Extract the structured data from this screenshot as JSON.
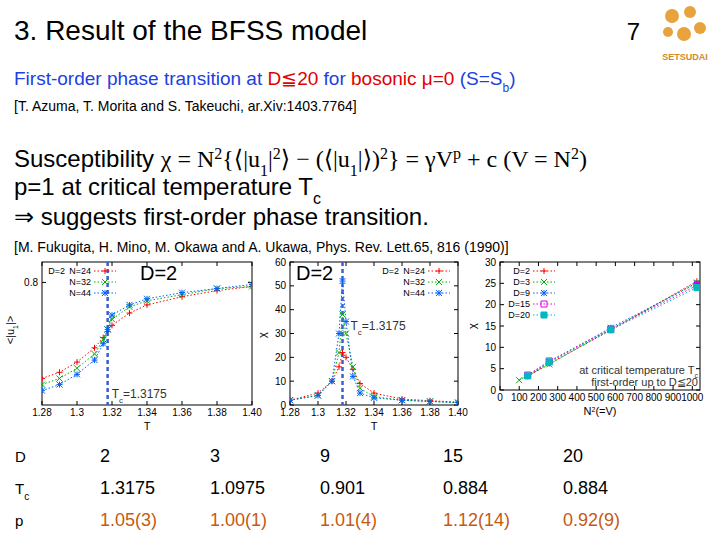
{
  "header": {
    "title": "3. Result of the BFSS model",
    "page": "7",
    "logo": "SETSUDAI"
  },
  "body": {
    "headline": [
      {
        "t": "First-order phase transition at ",
        "color": "#2040e0"
      },
      {
        "t": "D≦20",
        "color": "#e00000"
      },
      {
        "t": " for ",
        "color": "#2040e0"
      },
      {
        "t": "bosonic μ=0",
        "color": "#e00000"
      },
      {
        "t": " (S=S",
        "color": "#2040e0"
      },
      {
        "t": "b",
        "sub": true,
        "color": "#2040e0"
      },
      {
        "t": ")",
        "color": "#2040e0"
      }
    ],
    "reference_1": "[T. Azuma, T. Morita and S. Takeuchi, ar.Xiv:1403.7764]",
    "equation": [
      {
        "t": "Susceptibility "
      },
      {
        "t": "χ = N",
        "math": true
      },
      {
        "t": "2",
        "sup": true,
        "math": true
      },
      {
        "t": "{⟨|u",
        "math": true
      },
      {
        "t": "1",
        "sub": true,
        "math": true
      },
      {
        "t": "|",
        "math": true
      },
      {
        "t": "2",
        "sup": true,
        "math": true
      },
      {
        "t": "⟩ − (⟨|u",
        "math": true
      },
      {
        "t": "1",
        "sub": true,
        "math": true
      },
      {
        "t": "|⟩)",
        "math": true
      },
      {
        "t": "2",
        "sup": true,
        "math": true
      },
      {
        "t": "} = γV",
        "math": true
      },
      {
        "t": "p",
        "sup": true,
        "math": true
      },
      {
        "t": " + c (V = N",
        "math": true
      },
      {
        "t": "2",
        "sup": true,
        "math": true
      },
      {
        "t": ")",
        "math": true
      }
    ],
    "line_2": [
      {
        "t": "p=1 at critical temperature T"
      },
      {
        "t": "c",
        "sub": true
      }
    ],
    "line_3": [
      {
        "t": "⇒ suggests first-order phase transition."
      }
    ],
    "reference_2": "[M. Fukugita, H. Mino, M. Okawa and A. Ukawa, Phys. Rev. Lett.65, 816 (1990)]"
  },
  "chart_data": [
    {
      "type": "line",
      "title": "D=2",
      "x_label": "T",
      "y_label": [
        {
          "t": "<|u"
        },
        {
          "t": "1",
          "sub": true
        },
        {
          "t": "|>"
        }
      ],
      "xlim": [
        1.28,
        1.4
      ],
      "xticks": [
        1.28,
        1.3,
        1.32,
        1.34,
        1.36,
        1.38,
        {
          "value": 1.4,
          "label": "1.40"
        }
      ],
      "ylim": [
        0.2,
        0.9
      ],
      "yticks": [
        0.8
      ],
      "grid": false,
      "legend": "upper left",
      "legend_title": "D=2",
      "annotations": [
        {
          "x": 1.3175,
          "label": [
            {
              "t": "T"
            },
            {
              "t": "c",
              "sub": true
            },
            {
              "t": "=1.3175"
            }
          ]
        }
      ],
      "series": [
        {
          "name": "N=24",
          "color": "#ff0000",
          "marker": "plus",
          "line_style": "dotted",
          "x": [
            1.28,
            1.29,
            1.3,
            1.31,
            1.315,
            1.3175,
            1.32,
            1.33,
            1.34,
            1.36,
            1.38,
            1.4
          ],
          "values": [
            0.33,
            0.36,
            0.41,
            0.48,
            0.53,
            0.56,
            0.59,
            0.65,
            0.69,
            0.73,
            0.76,
            0.78
          ]
        },
        {
          "name": "N=32",
          "color": "#00b000",
          "marker": "cross",
          "line_style": "dotted",
          "x": [
            1.28,
            1.29,
            1.3,
            1.31,
            1.315,
            1.3175,
            1.32,
            1.33,
            1.34,
            1.36,
            1.38,
            1.4
          ],
          "values": [
            0.3,
            0.33,
            0.38,
            0.45,
            0.52,
            0.57,
            0.62,
            0.68,
            0.71,
            0.74,
            0.77,
            0.78
          ]
        },
        {
          "name": "N=44",
          "color": "#0060ff",
          "marker": "star",
          "line_style": "dotted",
          "x": [
            1.28,
            1.29,
            1.3,
            1.31,
            1.315,
            1.3175,
            1.32,
            1.33,
            1.34,
            1.36,
            1.38,
            1.4
          ],
          "values": [
            0.27,
            0.3,
            0.35,
            0.42,
            0.5,
            0.57,
            0.64,
            0.69,
            0.72,
            0.75,
            0.77,
            0.79
          ]
        }
      ]
    },
    {
      "type": "line",
      "title": "D=2",
      "x_label": "T",
      "y_label": "χ",
      "xlim": [
        1.28,
        1.4
      ],
      "xticks": [
        1.28,
        1.3,
        1.32,
        1.34,
        1.36,
        1.38,
        {
          "value": 1.4,
          "label": "1.40"
        }
      ],
      "ylim": [
        0,
        60
      ],
      "yticks": [
        0,
        10,
        20,
        30,
        40,
        50,
        60
      ],
      "grid": false,
      "legend": "upper right",
      "legend_title": "D=2",
      "annotations": [
        {
          "x": 1.3175,
          "label": [
            {
              "t": "T"
            },
            {
              "t": "c",
              "sub": true
            },
            {
              "t": "=1.3175"
            }
          ]
        }
      ],
      "series": [
        {
          "name": "N=24",
          "color": "#ff0000",
          "marker": "plus",
          "line_style": "dotted",
          "x": [
            1.28,
            1.3,
            1.31,
            1.315,
            1.3175,
            1.32,
            1.325,
            1.33,
            1.34,
            1.36,
            1.38,
            1.4
          ],
          "values": [
            2,
            5,
            10,
            16,
            22,
            20,
            15,
            9,
            5,
            2.5,
            1.8,
            1.2
          ]
        },
        {
          "name": "N=32",
          "color": "#00b000",
          "marker": "cross",
          "line_style": "dotted",
          "x": [
            1.28,
            1.3,
            1.31,
            1.315,
            1.3175,
            1.32,
            1.325,
            1.33,
            1.34,
            1.36,
            1.38,
            1.4
          ],
          "values": [
            2,
            4,
            10,
            22,
            38,
            30,
            16,
            7,
            3.5,
            2,
            1.5,
            1
          ]
        },
        {
          "name": "N=44",
          "color": "#0060ff",
          "marker": "star",
          "line_style": "dotted",
          "x": [
            1.28,
            1.3,
            1.31,
            1.315,
            1.3175,
            1.32,
            1.325,
            1.33,
            1.34,
            1.36,
            1.38,
            1.4
          ],
          "values": [
            2,
            4,
            10,
            30,
            52,
            35,
            12,
            5,
            3,
            2,
            1.5,
            1
          ]
        }
      ]
    },
    {
      "type": "line",
      "x_label": [
        {
          "t": "N"
        },
        {
          "t": "2",
          "sup": true
        },
        {
          "t": "(=V)"
        }
      ],
      "y_label": "χ",
      "xlim": [
        0,
        1040
      ],
      "xticks": [
        0,
        100,
        200,
        300,
        400,
        500,
        600,
        700,
        800,
        900,
        1000
      ],
      "ylim": [
        0,
        30
      ],
      "yticks": [
        0,
        5,
        10,
        15,
        20,
        25,
        30
      ],
      "grid": false,
      "legend": "upper left",
      "notes": [
        [
          {
            "t": "at critical temperature T"
          },
          {
            "t": "c",
            "sub": true
          }
        ],
        [
          {
            "t": "first-order up to D≦20"
          }
        ]
      ],
      "series": [
        {
          "name": "D=2",
          "color": "#ff0000",
          "marker": "plus",
          "line_style": "dotted",
          "x": [
            144,
            256,
            576,
            1024
          ],
          "values": [
            3.2,
            6.2,
            14.0,
            25.5
          ]
        },
        {
          "name": "D=3",
          "color": "#00b000",
          "marker": "cross",
          "line_style": "dotted",
          "x": [
            100,
            256,
            576,
            1024
          ],
          "values": [
            2.3,
            6.0,
            14.2,
            25.2
          ]
        },
        {
          "name": "D=9",
          "color": "#0060ff",
          "marker": "star",
          "line_style": "dotted",
          "x": [
            144,
            256,
            576,
            1024
          ],
          "values": [
            3.4,
            6.5,
            14.6,
            25.0
          ]
        },
        {
          "name": "D=15",
          "color": "#e000e0",
          "marker": "square",
          "line_style": "dotted",
          "x": [
            144,
            256,
            576,
            1024
          ],
          "values": [
            3.5,
            6.8,
            14.3,
            24.5
          ]
        },
        {
          "name": "D=20",
          "color": "#00b8c0",
          "marker": "filled-square",
          "line_style": "dotted",
          "x": [
            144,
            256,
            576,
            1024
          ],
          "values": [
            3.3,
            6.6,
            14.1,
            24.0
          ]
        }
      ]
    }
  ],
  "table": {
    "rows": [
      {
        "cells": [
          "D",
          "2",
          "3",
          "9",
          "15",
          "20"
        ]
      },
      {
        "cells": [
          [
            {
              "t": "T"
            },
            {
              "t": "c",
              "sub": true
            }
          ],
          "1.3175",
          "1.0975",
          "0.901",
          "0.884",
          "0.884"
        ]
      },
      {
        "cells": [
          "p",
          "1.05(3)",
          "1.00(1)",
          "1.01(4)",
          "1.12(14)",
          "0.92(9)"
        ],
        "color": "#c55a11"
      }
    ]
  }
}
